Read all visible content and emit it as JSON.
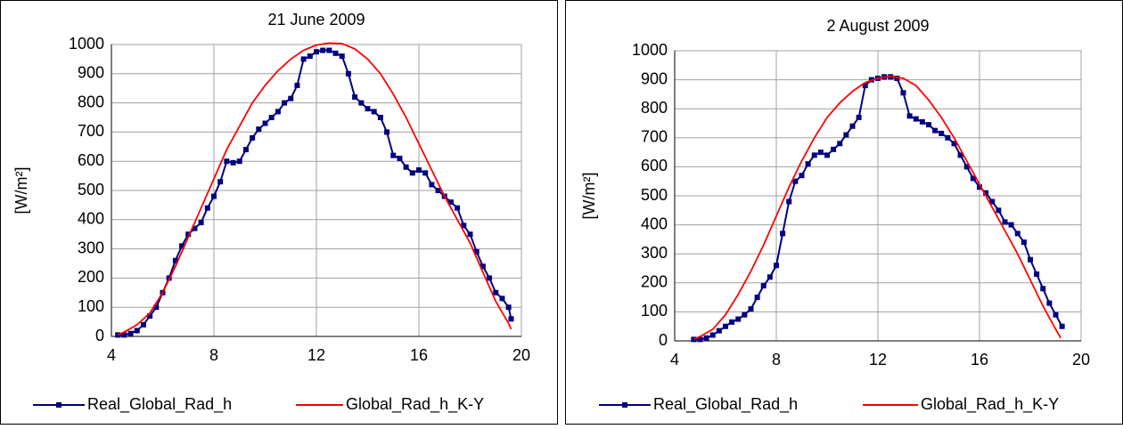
{
  "chart_data": [
    {
      "type": "line",
      "title": "21 June 2009",
      "y_label": "[W/m²]",
      "xlim": [
        4,
        20
      ],
      "xticks": [
        4,
        8,
        12,
        16,
        20
      ],
      "ylim": [
        0,
        1000
      ],
      "yticks": [
        0,
        100,
        200,
        300,
        400,
        500,
        600,
        700,
        800,
        900,
        1000
      ],
      "grid": true,
      "legend": "bottom",
      "series": [
        {
          "name": "Real_Global_Rad_h",
          "color": "#000080",
          "marker": "square",
          "x": [
            4.25,
            4.5,
            4.75,
            5.0,
            5.25,
            5.5,
            5.75,
            6.0,
            6.25,
            6.5,
            6.75,
            7.0,
            7.25,
            7.5,
            7.75,
            8.0,
            8.25,
            8.5,
            8.75,
            9.0,
            9.25,
            9.5,
            9.75,
            10.0,
            10.25,
            10.5,
            10.75,
            11.0,
            11.25,
            11.5,
            11.75,
            12.0,
            12.25,
            12.5,
            12.75,
            13.0,
            13.25,
            13.5,
            13.75,
            14.0,
            14.25,
            14.5,
            14.75,
            15.0,
            15.25,
            15.5,
            15.75,
            16.0,
            16.25,
            16.5,
            16.75,
            17.0,
            17.25,
            17.5,
            17.75,
            18.0,
            18.25,
            18.5,
            18.75,
            19.0,
            19.25,
            19.5,
            19.6
          ],
          "values": [
            5,
            5,
            10,
            20,
            40,
            70,
            100,
            150,
            200,
            260,
            310,
            350,
            370,
            390,
            440,
            480,
            530,
            600,
            595,
            600,
            640,
            680,
            710,
            730,
            750,
            770,
            800,
            815,
            860,
            950,
            960,
            975,
            980,
            980,
            970,
            960,
            900,
            820,
            800,
            780,
            770,
            750,
            700,
            620,
            610,
            580,
            560,
            570,
            560,
            520,
            500,
            480,
            460,
            440,
            380,
            350,
            290,
            240,
            200,
            150,
            130,
            100,
            60
          ]
        },
        {
          "name": "Global_Rad_h_K-Y",
          "color": "#ff0000",
          "marker": "none",
          "x": [
            4.25,
            4.5,
            5,
            5.5,
            6,
            6.5,
            7,
            7.5,
            8,
            8.5,
            9,
            9.5,
            10,
            10.5,
            11,
            11.5,
            12,
            12.5,
            13,
            13.5,
            14,
            14.5,
            15,
            15.5,
            16,
            16.5,
            17,
            17.5,
            18,
            18.5,
            19,
            19.5,
            19.6
          ],
          "values": [
            5,
            15,
            40,
            80,
            150,
            240,
            340,
            440,
            540,
            640,
            720,
            800,
            860,
            910,
            950,
            980,
            998,
            1005,
            1003,
            985,
            950,
            900,
            830,
            750,
            660,
            570,
            480,
            400,
            320,
            220,
            120,
            45,
            25
          ]
        }
      ]
    },
    {
      "type": "line",
      "title": "2 August 2009",
      "y_label": "[W/m²]",
      "xlim": [
        4,
        20
      ],
      "xticks": [
        4,
        8,
        12,
        16,
        20
      ],
      "ylim": [
        0,
        1000
      ],
      "yticks": [
        0,
        100,
        200,
        300,
        400,
        500,
        600,
        700,
        800,
        900,
        1000
      ],
      "grid": true,
      "legend": "bottom",
      "series": [
        {
          "name": "Real_Global_Rad_h",
          "color": "#000080",
          "marker": "square",
          "x": [
            4.75,
            5.0,
            5.25,
            5.5,
            5.75,
            6.0,
            6.25,
            6.5,
            6.75,
            7.0,
            7.25,
            7.5,
            7.75,
            8.0,
            8.25,
            8.5,
            8.75,
            9.0,
            9.25,
            9.5,
            9.75,
            10.0,
            10.25,
            10.5,
            10.75,
            11.0,
            11.25,
            11.5,
            11.75,
            12.0,
            12.25,
            12.5,
            12.75,
            13.0,
            13.25,
            13.5,
            13.75,
            14.0,
            14.25,
            14.5,
            14.75,
            15.0,
            15.25,
            15.5,
            15.75,
            16.0,
            16.25,
            16.5,
            16.75,
            17.0,
            17.25,
            17.5,
            17.75,
            18.0,
            18.25,
            18.5,
            18.75,
            19.0,
            19.25
          ],
          "values": [
            5,
            5,
            10,
            20,
            35,
            50,
            65,
            75,
            90,
            110,
            150,
            190,
            220,
            260,
            370,
            480,
            550,
            570,
            610,
            640,
            650,
            640,
            660,
            680,
            710,
            740,
            770,
            880,
            900,
            905,
            910,
            910,
            905,
            855,
            775,
            765,
            755,
            745,
            725,
            715,
            700,
            680,
            640,
            600,
            560,
            530,
            510,
            480,
            450,
            410,
            400,
            370,
            340,
            280,
            230,
            180,
            130,
            90,
            50
          ]
        },
        {
          "name": "Global_Rad_h_K-Y",
          "color": "#ff0000",
          "marker": "none",
          "x": [
            4.75,
            5,
            5.5,
            6,
            6.5,
            7,
            7.5,
            8,
            8.5,
            9,
            9.5,
            10,
            10.5,
            11,
            11.5,
            12,
            12.5,
            13,
            13.5,
            14,
            14.5,
            15,
            15.5,
            16,
            16.5,
            17,
            17.5,
            18,
            18.5,
            19,
            19.2
          ],
          "values": [
            5,
            15,
            40,
            90,
            160,
            240,
            330,
            430,
            530,
            620,
            700,
            770,
            820,
            860,
            890,
            905,
            912,
            905,
            880,
            830,
            770,
            700,
            620,
            540,
            460,
            380,
            300,
            210,
            120,
            40,
            10
          ]
        }
      ]
    }
  ]
}
